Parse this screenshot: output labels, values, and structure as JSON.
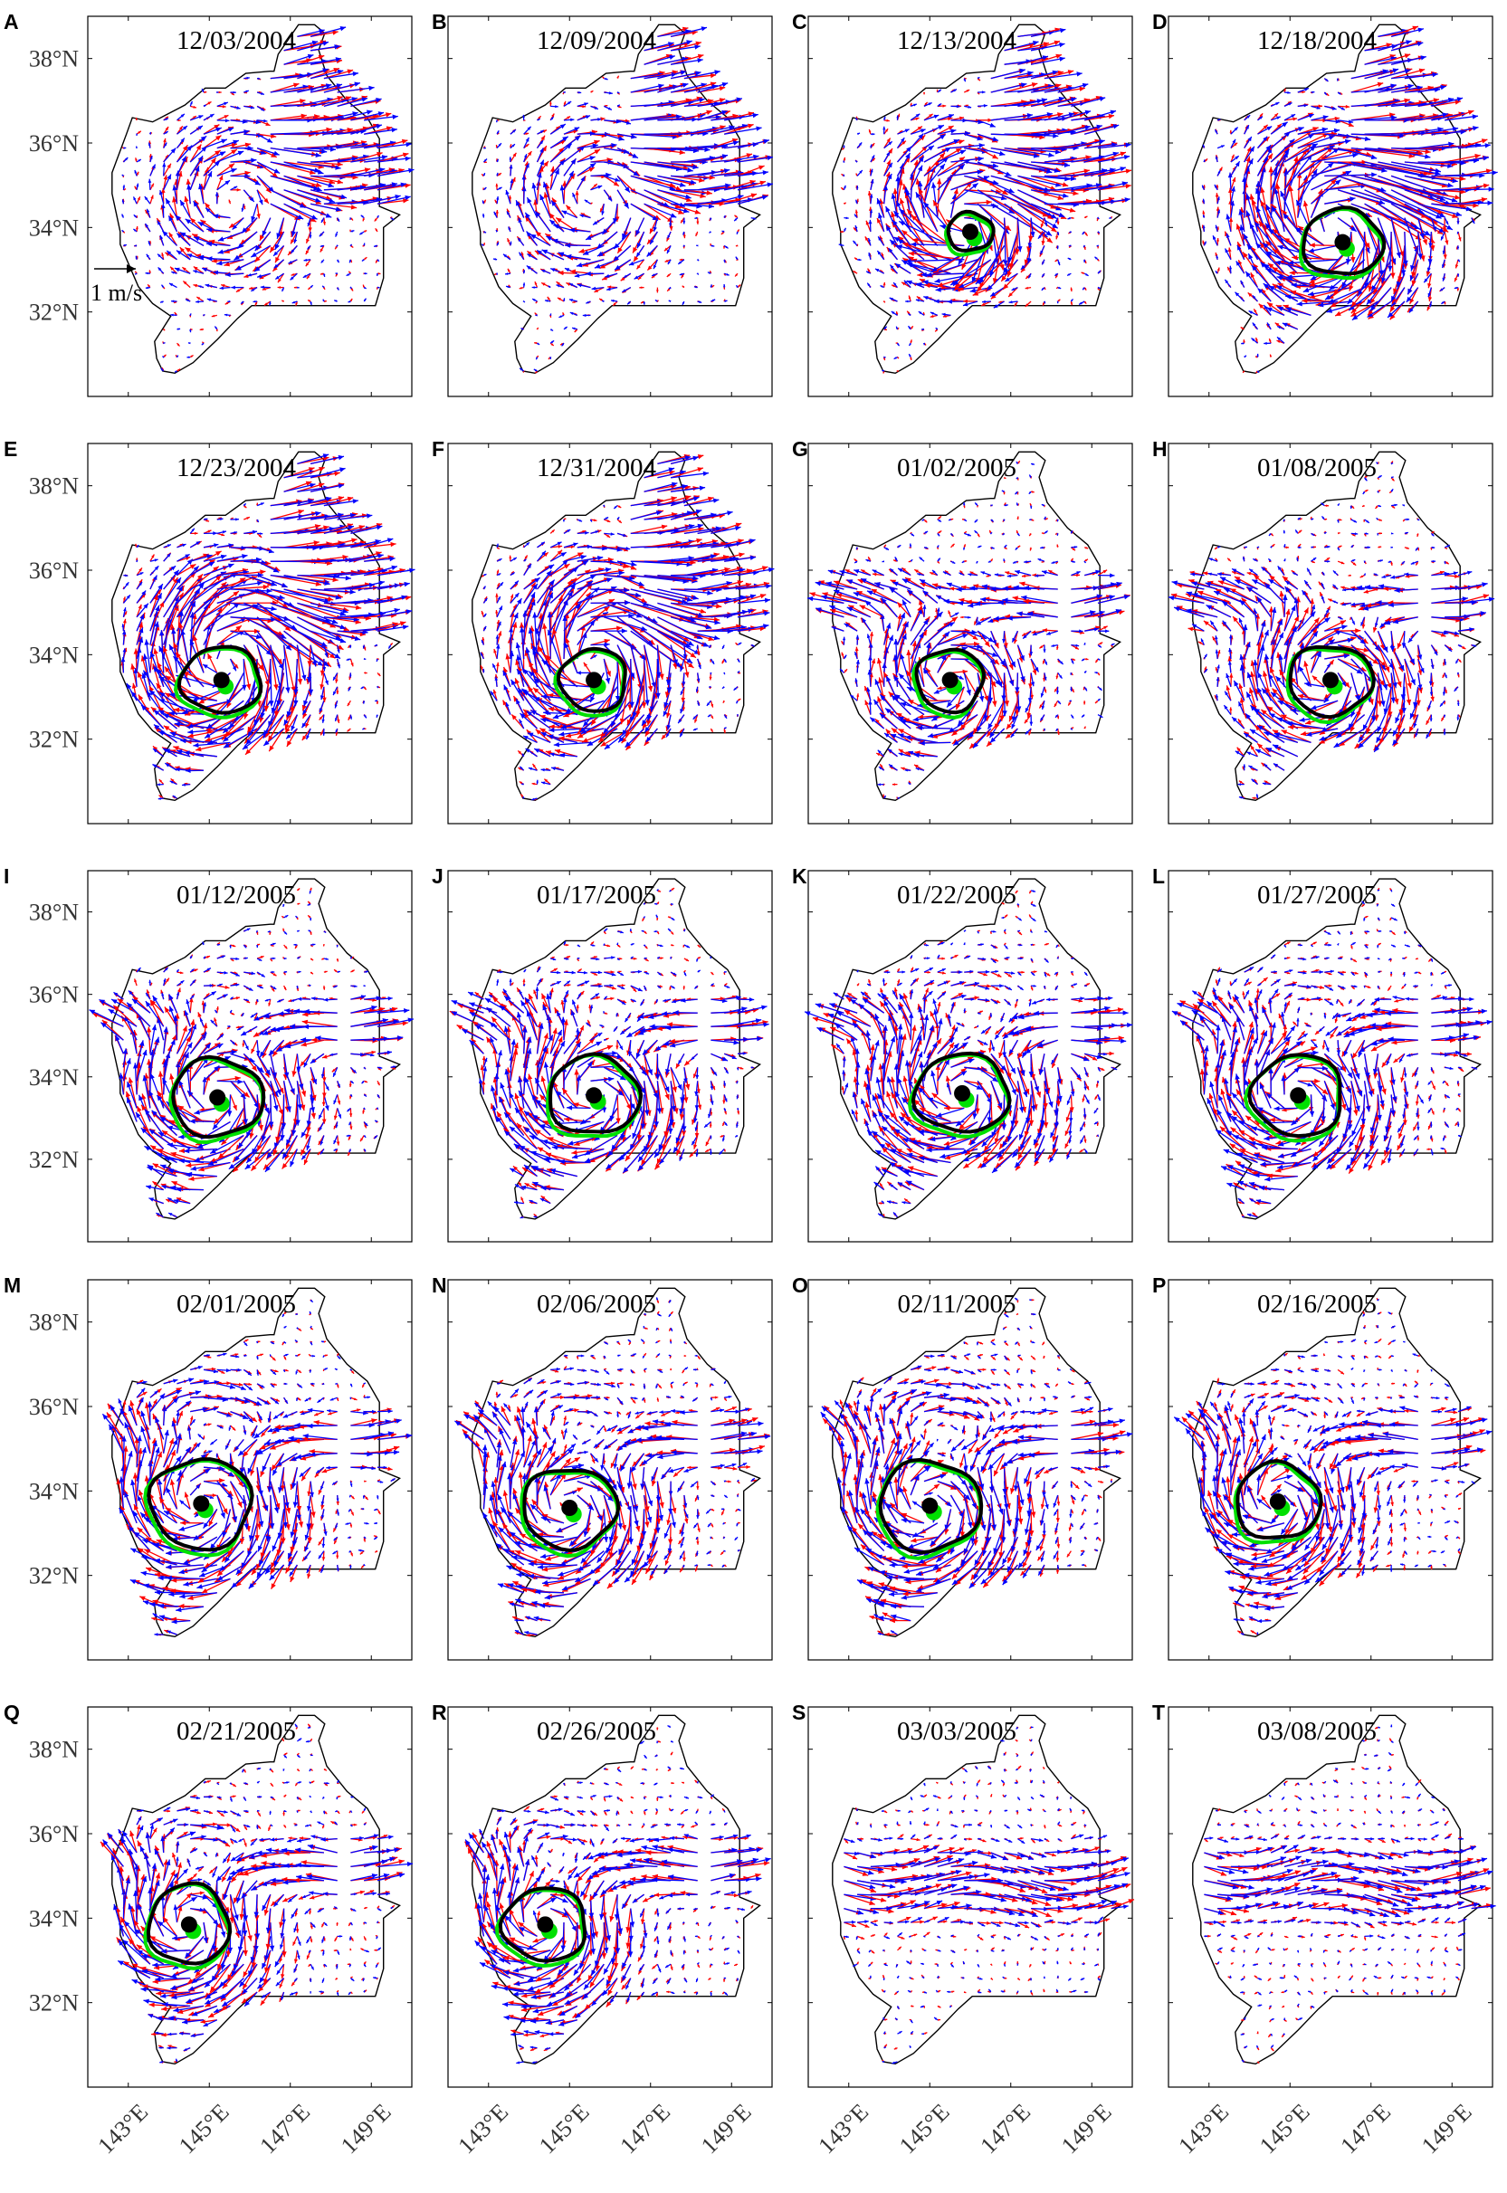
{
  "chart_data": {
    "type": "quiver-map-grid",
    "rows": 5,
    "cols": 4,
    "xlim": [
      142,
      150
    ],
    "ylim": [
      30,
      39
    ],
    "x_ticks": [
      143,
      145,
      147,
      149
    ],
    "x_tick_labels": [
      "143°E",
      "145°E",
      "147°E",
      "149°E"
    ],
    "y_ticks": [
      32,
      34,
      36,
      38
    ],
    "y_tick_labels": [
      "32°N",
      "34°N",
      "36°N",
      "38°N"
    ],
    "scale_label": "1 m/s",
    "colors": {
      "arrow_a": "#ff0000",
      "arrow_b": "#0000ff",
      "contour_a": "#00e000",
      "contour_b": "#000000",
      "center_a": "#00e000",
      "center_b": "#000000",
      "domain": "#000000"
    },
    "domain_outline": [
      [
        144.15,
        30.55
      ],
      [
        144.6,
        30.8
      ],
      [
        145.2,
        31.35
      ],
      [
        145.7,
        31.85
      ],
      [
        146.05,
        32.15
      ],
      [
        148.6,
        32.15
      ],
      [
        149.1,
        32.15
      ],
      [
        149.3,
        32.8
      ],
      [
        149.3,
        34.0
      ],
      [
        149.7,
        34.3
      ],
      [
        149.2,
        34.5
      ],
      [
        149.2,
        36.1
      ],
      [
        148.9,
        36.6
      ],
      [
        148.4,
        37.0
      ],
      [
        147.9,
        37.6
      ],
      [
        147.7,
        38.2
      ],
      [
        147.85,
        38.6
      ],
      [
        147.6,
        38.8
      ],
      [
        147.2,
        38.8
      ],
      [
        146.7,
        38.1
      ],
      [
        146.6,
        37.7
      ],
      [
        146.5,
        37.7
      ],
      [
        145.9,
        37.65
      ],
      [
        145.4,
        37.3
      ],
      [
        144.9,
        37.3
      ],
      [
        144.4,
        36.9
      ],
      [
        143.6,
        36.5
      ],
      [
        143.1,
        36.6
      ],
      [
        142.95,
        36.2
      ],
      [
        142.6,
        35.3
      ],
      [
        142.6,
        34.8
      ],
      [
        142.8,
        33.9
      ],
      [
        142.8,
        33.6
      ],
      [
        143.25,
        32.6
      ],
      [
        143.6,
        32.2
      ],
      [
        144.05,
        31.9
      ],
      [
        143.85,
        31.6
      ],
      [
        143.65,
        31.3
      ],
      [
        143.7,
        30.9
      ],
      [
        143.85,
        30.6
      ]
    ],
    "panels": [
      {
        "label": "A",
        "date": "12/03/2004",
        "eddy": null,
        "flow": "a"
      },
      {
        "label": "B",
        "date": "12/09/2004",
        "eddy": null,
        "flow": "a"
      },
      {
        "label": "C",
        "date": "12/13/2004",
        "eddy": {
          "cx": 146.0,
          "cy": 33.9,
          "ra": 0.65,
          "rb": 0.55
        },
        "flow": "a"
      },
      {
        "label": "D",
        "date": "12/18/2004",
        "eddy": {
          "cx": 146.3,
          "cy": 33.65,
          "ra": 1.15,
          "rb": 0.95
        },
        "flow": "a"
      },
      {
        "label": "E",
        "date": "12/23/2004",
        "eddy": {
          "cx": 145.3,
          "cy": 33.4,
          "ra": 1.15,
          "rb": 0.95
        },
        "flow": "a"
      },
      {
        "label": "F",
        "date": "12/31/2004",
        "eddy": {
          "cx": 145.6,
          "cy": 33.4,
          "ra": 0.95,
          "rb": 0.9
        },
        "flow": "a"
      },
      {
        "label": "G",
        "date": "01/02/2005",
        "eddy": {
          "cx": 145.5,
          "cy": 33.4,
          "ra": 0.95,
          "rb": 0.9
        },
        "flow": "b"
      },
      {
        "label": "H",
        "date": "01/08/2005",
        "eddy": {
          "cx": 146.0,
          "cy": 33.4,
          "ra": 1.2,
          "rb": 1.0
        },
        "flow": "b"
      },
      {
        "label": "I",
        "date": "01/12/2005",
        "eddy": {
          "cx": 145.2,
          "cy": 33.5,
          "ra": 1.3,
          "rb": 1.15
        },
        "flow": "b"
      },
      {
        "label": "J",
        "date": "01/17/2005",
        "eddy": {
          "cx": 145.6,
          "cy": 33.55,
          "ra": 1.3,
          "rb": 1.15
        },
        "flow": "b"
      },
      {
        "label": "K",
        "date": "01/22/2005",
        "eddy": {
          "cx": 145.8,
          "cy": 33.6,
          "ra": 1.35,
          "rb": 1.15
        },
        "flow": "b"
      },
      {
        "label": "L",
        "date": "01/27/2005",
        "eddy": {
          "cx": 145.2,
          "cy": 33.55,
          "ra": 1.3,
          "rb": 1.2
        },
        "flow": "b"
      },
      {
        "label": "M",
        "date": "02/01/2005",
        "eddy": {
          "cx": 144.8,
          "cy": 33.7,
          "ra": 1.45,
          "rb": 1.3
        },
        "flow": "b"
      },
      {
        "label": "N",
        "date": "02/06/2005",
        "eddy": {
          "cx": 145.0,
          "cy": 33.6,
          "ra": 1.35,
          "rb": 1.15
        },
        "flow": "b"
      },
      {
        "label": "O",
        "date": "02/11/2005",
        "eddy": {
          "cx": 145.0,
          "cy": 33.65,
          "ra": 1.45,
          "rb": 1.3
        },
        "flow": "b"
      },
      {
        "label": "P",
        "date": "02/16/2005",
        "eddy": {
          "cx": 144.7,
          "cy": 33.75,
          "ra": 1.2,
          "rb": 1.1
        },
        "flow": "b"
      },
      {
        "label": "Q",
        "date": "02/21/2005",
        "eddy": {
          "cx": 144.5,
          "cy": 33.85,
          "ra": 1.15,
          "rb": 1.15
        },
        "flow": "b"
      },
      {
        "label": "R",
        "date": "02/26/2005",
        "eddy": {
          "cx": 144.4,
          "cy": 33.85,
          "ra": 1.2,
          "rb": 1.05
        },
        "flow": "b"
      },
      {
        "label": "S",
        "date": "03/03/2005",
        "eddy": null,
        "flow": "c"
      },
      {
        "label": "T",
        "date": "03/08/2005",
        "eddy": null,
        "flow": "c"
      }
    ]
  }
}
